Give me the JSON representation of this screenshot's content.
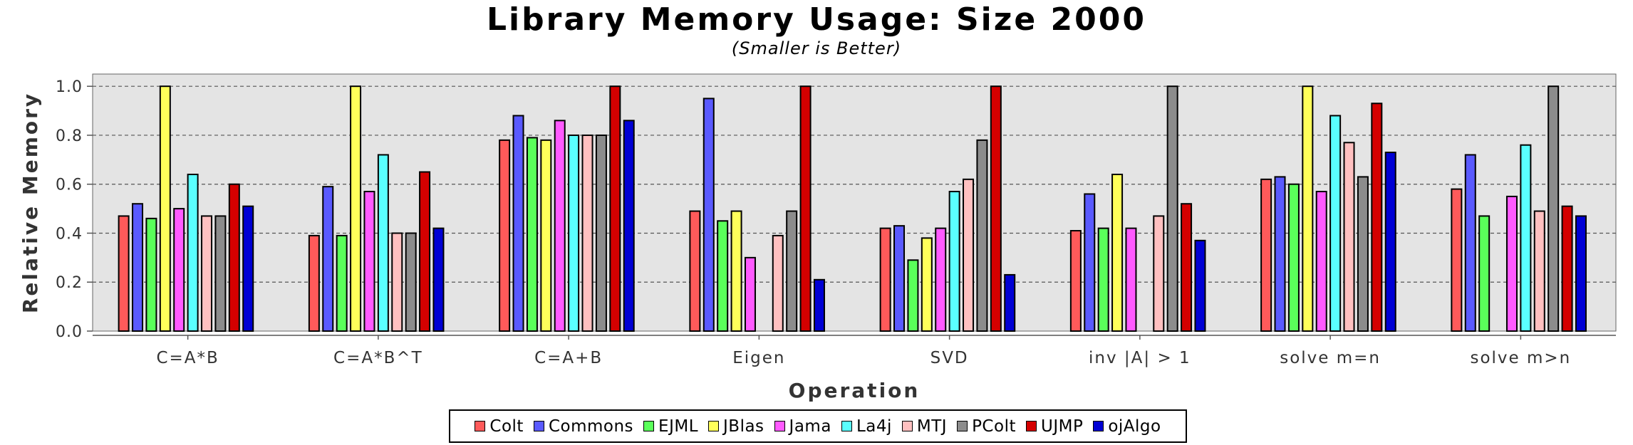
{
  "chart_data": {
    "type": "bar",
    "title": "Library Memory Usage: Size 2000",
    "subtitle": "(Smaller is Better)",
    "xlabel": "Operation",
    "ylabel": "Relative Memory",
    "ylim": [
      0,
      1.0
    ],
    "yticks": [
      "0.0",
      "0.2",
      "0.4",
      "0.6",
      "0.8",
      "1.0"
    ],
    "grid": true,
    "legend_position": "bottom",
    "categories": [
      "C=A*B",
      "C=A*B^T",
      "C=A+B",
      "Eigen",
      "SVD",
      "inv |A| > 1",
      "solve m=n",
      "solve m>n"
    ],
    "series": [
      {
        "name": "Colt",
        "color": "#ff5a5a",
        "values": [
          0.47,
          0.39,
          0.78,
          0.49,
          0.42,
          0.41,
          0.62,
          0.58
        ]
      },
      {
        "name": "Commons",
        "color": "#5a5aff",
        "values": [
          0.52,
          0.59,
          0.88,
          0.95,
          0.43,
          0.56,
          0.63,
          0.72
        ]
      },
      {
        "name": "EJML",
        "color": "#5aff5a",
        "values": [
          0.46,
          0.39,
          0.79,
          0.45,
          0.29,
          0.42,
          0.6,
          0.47
        ]
      },
      {
        "name": "JBlas",
        "color": "#ffff5a",
        "values": [
          1.0,
          1.0,
          0.78,
          0.49,
          0.38,
          0.64,
          1.0,
          null
        ]
      },
      {
        "name": "Jama",
        "color": "#ff5aff",
        "values": [
          0.5,
          0.57,
          0.86,
          0.3,
          0.42,
          0.42,
          0.57,
          0.55
        ]
      },
      {
        "name": "La4j",
        "color": "#5affff",
        "values": [
          0.64,
          0.72,
          0.8,
          null,
          0.57,
          null,
          0.88,
          0.76
        ]
      },
      {
        "name": "MTJ",
        "color": "#ffc0c0",
        "values": [
          0.47,
          0.4,
          0.8,
          0.39,
          0.62,
          0.47,
          0.77,
          0.49
        ]
      },
      {
        "name": "PColt",
        "color": "#8c8c8c",
        "values": [
          0.47,
          0.4,
          0.8,
          0.49,
          0.78,
          1.0,
          0.63,
          1.0
        ]
      },
      {
        "name": "UJMP",
        "color": "#d40000",
        "values": [
          0.6,
          0.65,
          1.0,
          1.0,
          1.0,
          0.52,
          0.93,
          0.51
        ]
      },
      {
        "name": "ojAlgo",
        "color": "#0000d4",
        "values": [
          0.51,
          0.42,
          0.86,
          0.21,
          0.23,
          0.37,
          0.73,
          0.47
        ]
      }
    ],
    "plot_background": "#e4e4e4"
  }
}
